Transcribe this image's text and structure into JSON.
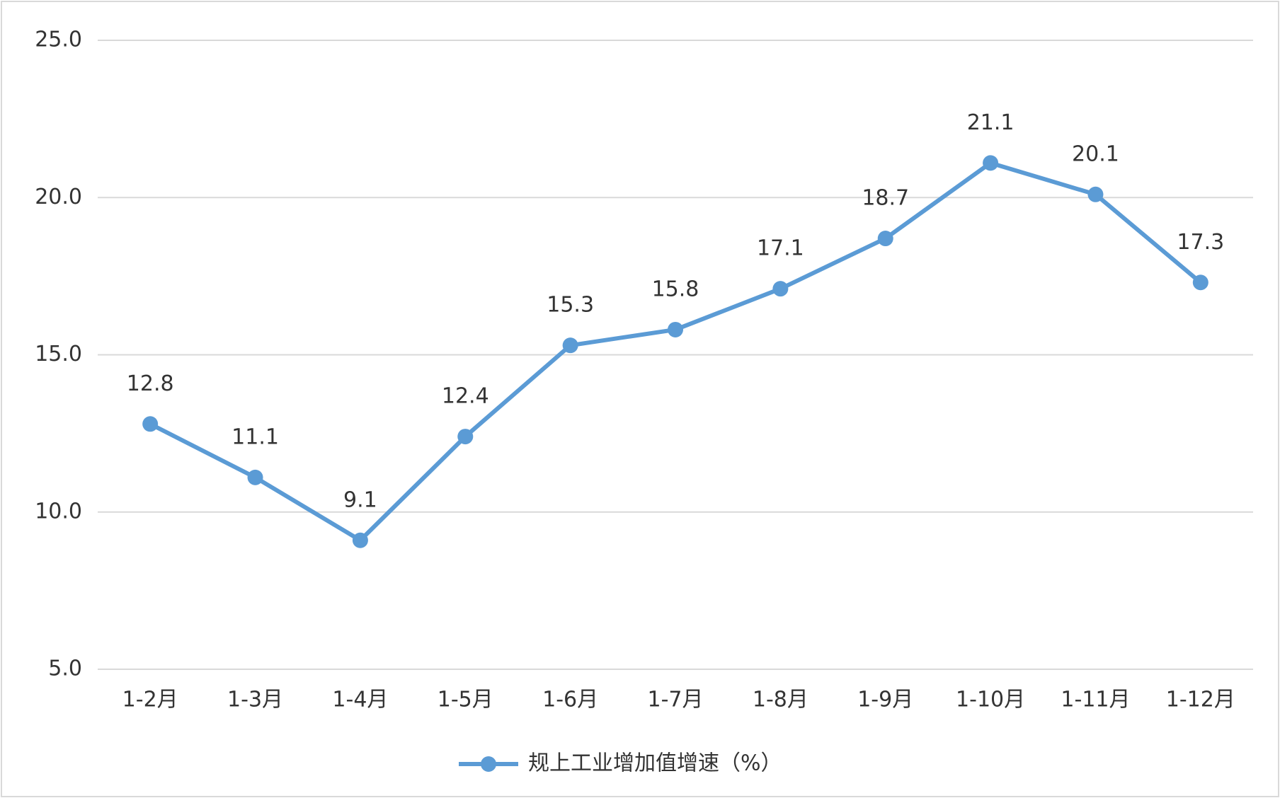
{
  "chart_data": {
    "type": "line",
    "categories": [
      "1-2月",
      "1-3月",
      "1-4月",
      "1-5月",
      "1-6月",
      "1-7月",
      "1-8月",
      "1-9月",
      "1-10月",
      "1-11月",
      "1-12月"
    ],
    "series": [
      {
        "name": "规上工业增加值增速（%）",
        "color": "#5b9bd5",
        "values": [
          12.8,
          11.1,
          9.1,
          12.4,
          15.3,
          15.8,
          17.1,
          18.7,
          21.1,
          20.1,
          17.3
        ]
      }
    ],
    "ylim": [
      5,
      25
    ],
    "yticks": [
      {
        "value": 5,
        "label": "5.0"
      },
      {
        "value": 10,
        "label": "10.0"
      },
      {
        "value": 15,
        "label": "15.0"
      },
      {
        "value": 20,
        "label": "20.0"
      },
      {
        "value": 25,
        "label": "25.0"
      }
    ],
    "grid": true,
    "legend": "bottom"
  }
}
